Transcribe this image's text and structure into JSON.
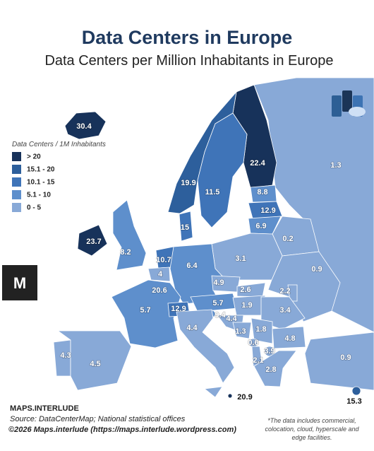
{
  "title": "Data Centers in Europe",
  "subtitle": "Data Centers per Million Inhabitants in Europe",
  "legend": {
    "title": "Data Centers / 1M Inhabitants",
    "items": [
      {
        "label": "> 20",
        "color": "#17325a"
      },
      {
        "label": "15.1 - 20",
        "color": "#2d5f9c"
      },
      {
        "label": "10.1 - 15",
        "color": "#3f74b8"
      },
      {
        "label": "5.1 - 10",
        "color": "#5e8fcc"
      },
      {
        "label": "0 - 5",
        "color": "#88a9d7"
      }
    ]
  },
  "regions": [
    {
      "value": 1.3,
      "color": "#88a9d7"
    },
    {
      "value": 30.4,
      "color": "#17325a"
    },
    {
      "value": 22.4,
      "color": "#17325a"
    },
    {
      "value": 19.9,
      "color": "#2d5f9c"
    },
    {
      "value": 11.5,
      "color": "#3f74b8"
    },
    {
      "value": 8.8,
      "color": "#5e8fcc"
    },
    {
      "value": 12.9,
      "color": "#3f74b8"
    },
    {
      "value": 6.9,
      "color": "#5e8fcc"
    },
    {
      "value": 23.7,
      "color": "#17325a"
    },
    {
      "value": 8.2,
      "color": "#5e8fcc"
    },
    {
      "value": 15,
      "color": "#3f74b8"
    },
    {
      "value": 0.2,
      "color": "#88a9d7"
    },
    {
      "value": 3.1,
      "color": "#88a9d7"
    },
    {
      "value": 10.7,
      "color": "#3f74b8"
    },
    {
      "value": 4,
      "color": "#88a9d7"
    },
    {
      "value": 20.6,
      "color": "#17325a"
    },
    {
      "value": 6.4,
      "color": "#5e8fcc"
    },
    {
      "value": 4.9,
      "color": "#88a9d7"
    },
    {
      "value": 2.6,
      "color": "#88a9d7"
    },
    {
      "value": 0.9,
      "color": "#88a9d7"
    },
    {
      "value": 5.7,
      "color": "#5e8fcc"
    },
    {
      "value": 12.9,
      "color": "#3f74b8"
    },
    {
      "value": 5.7,
      "color": "#5e8fcc"
    },
    {
      "value": 1.9,
      "color": "#88a9d7"
    },
    {
      "value": 2.2,
      "color": "#88a9d7"
    },
    {
      "value": 3.4,
      "color": "#88a9d7"
    },
    {
      "value": 9.4,
      "color": "#5e8fcc"
    },
    {
      "value": 4.4,
      "color": "#88a9d7"
    },
    {
      "value": 4.4,
      "color": "#88a9d7"
    },
    {
      "value": 1.3,
      "color": "#88a9d7"
    },
    {
      "value": 1.8,
      "color": "#88a9d7"
    },
    {
      "value": 0.6,
      "color": "#88a9d7"
    },
    {
      "value": 3.9,
      "color": "#88a9d7"
    },
    {
      "value": 2.1,
      "color": "#88a9d7"
    },
    {
      "value": 4.8,
      "color": "#88a9d7"
    },
    {
      "value": 2.8,
      "color": "#88a9d7"
    },
    {
      "value": 0.9,
      "color": "#88a9d7"
    },
    {
      "value": 4.3,
      "color": "#88a9d7"
    },
    {
      "value": 4.5,
      "color": "#88a9d7"
    },
    {
      "value": 20.9,
      "color": "#17325a"
    },
    {
      "value": 15.3,
      "color": "#2d5f9c"
    }
  ],
  "footer": {
    "brand": "MAPS.INTERLUDE",
    "source": "Source: DataCenterMap; National statistical offices",
    "copyright": "©2026 Maps.interlude (https://maps.interlude.wordpress.com)",
    "note": [
      "*The data includes commercial,",
      "colocation, cloud, hyperscale and",
      "edge facilities."
    ]
  }
}
